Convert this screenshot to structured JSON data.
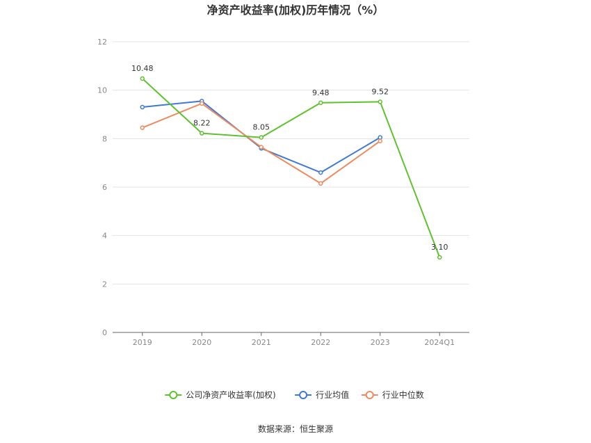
{
  "chart_data": {
    "type": "line",
    "title": "净资产收益率(加权)历年情况（%）",
    "categories": [
      "2019",
      "2020",
      "2021",
      "2022",
      "2023",
      "2024Q1"
    ],
    "ylim": [
      0,
      12
    ],
    "yticks": [
      0,
      2,
      4,
      6,
      8,
      10,
      12
    ],
    "grid": true,
    "legend_position": "bottom",
    "series": [
      {
        "name": "公司净资产收益率(加权)",
        "color": "#5ec22f",
        "values": [
          10.48,
          8.22,
          8.05,
          9.48,
          9.52,
          3.1
        ],
        "labels": [
          "10.48",
          "8.22",
          "8.05",
          "9.48",
          "9.52",
          "3.10"
        ]
      },
      {
        "name": "行业均值",
        "color": "#3e79d6",
        "values": [
          9.3,
          9.55,
          7.6,
          6.6,
          8.05,
          null
        ]
      },
      {
        "name": "行业中位数",
        "color": "#ee8a5e",
        "values": [
          8.45,
          9.45,
          7.65,
          6.15,
          7.9,
          null
        ]
      }
    ],
    "source": "数据来源：恒生聚源"
  }
}
